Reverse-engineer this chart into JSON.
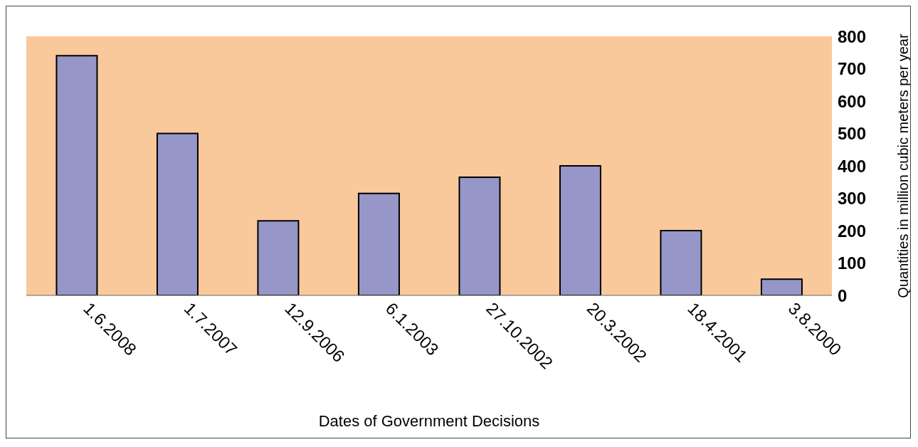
{
  "chart_data": {
    "type": "bar",
    "xlabel": "Dates of Government  Decisions",
    "ylabel": "Quantities in million cubic meters per year",
    "categories": [
      "1.6.2008",
      "1.7.2007",
      "12.9.2006",
      "6.1.2003",
      "27.10.2002",
      "20.3.2002",
      "18.4.2001",
      "3.8.2000"
    ],
    "values": [
      740,
      500,
      230,
      315,
      365,
      400,
      200,
      50
    ],
    "color": "#9696c8",
    "ylim": [
      0,
      800
    ],
    "yticks": [
      0,
      100,
      200,
      300,
      400,
      500,
      600,
      700,
      800
    ]
  }
}
